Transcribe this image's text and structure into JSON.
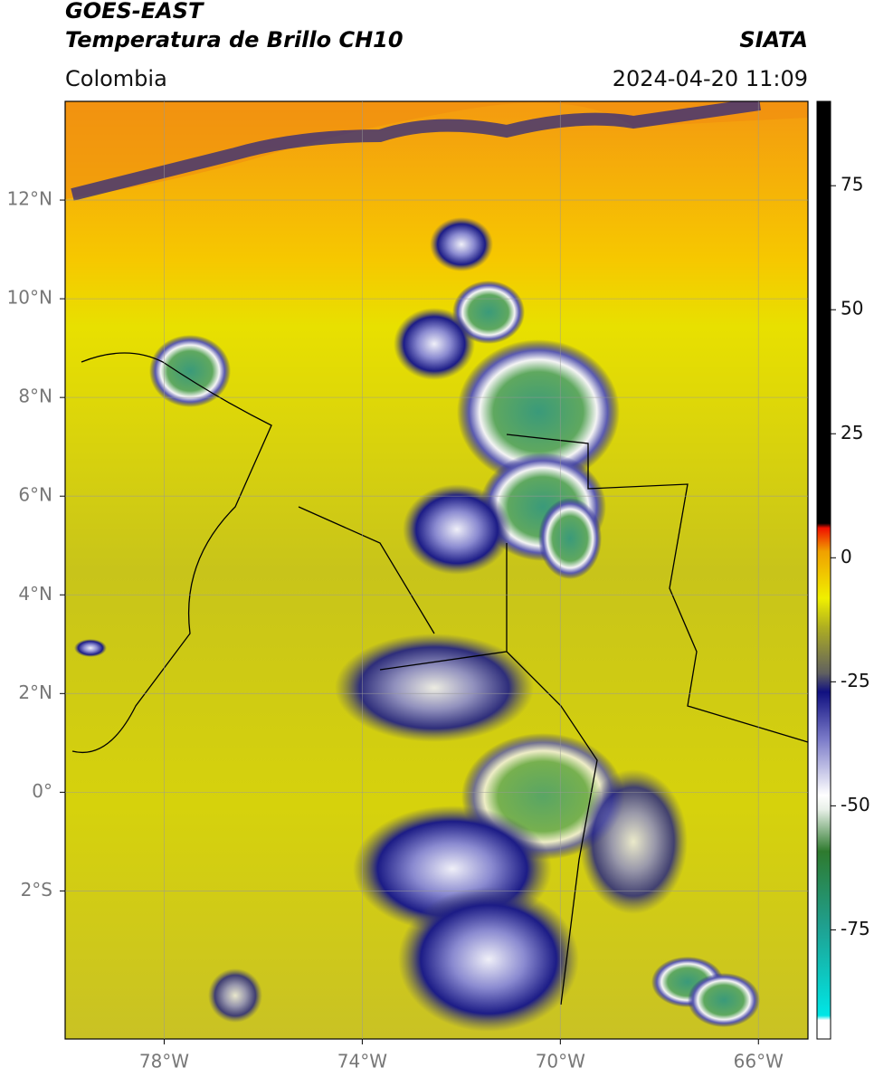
{
  "header": {
    "title": "GOES-EAST",
    "subtitle": "Temperatura de Brillo CH10",
    "source": "SIATA",
    "region": "Colombia",
    "timestamp": "2024-04-20 11:09"
  },
  "map": {
    "xlim": [
      -80,
      -65
    ],
    "ylim": [
      -5,
      14
    ],
    "xticks": [
      {
        "value": -78,
        "label": "78°W"
      },
      {
        "value": -74,
        "label": "74°W"
      },
      {
        "value": -70,
        "label": "70°W"
      },
      {
        "value": -66,
        "label": "66°W"
      }
    ],
    "yticks": [
      {
        "value": 12,
        "label": "12°N"
      },
      {
        "value": 10,
        "label": "10°N"
      },
      {
        "value": 8,
        "label": "8°N"
      },
      {
        "value": 6,
        "label": "6°N"
      },
      {
        "value": 4,
        "label": "4°N"
      },
      {
        "value": 2,
        "label": "2°N"
      },
      {
        "value": 0,
        "label": "0°"
      },
      {
        "value": -2,
        "label": "2°S"
      }
    ]
  },
  "colorbar": {
    "lim": [
      -97,
      92
    ],
    "ticks": [
      75,
      50,
      25,
      0,
      -25,
      -50,
      -75
    ]
  }
}
